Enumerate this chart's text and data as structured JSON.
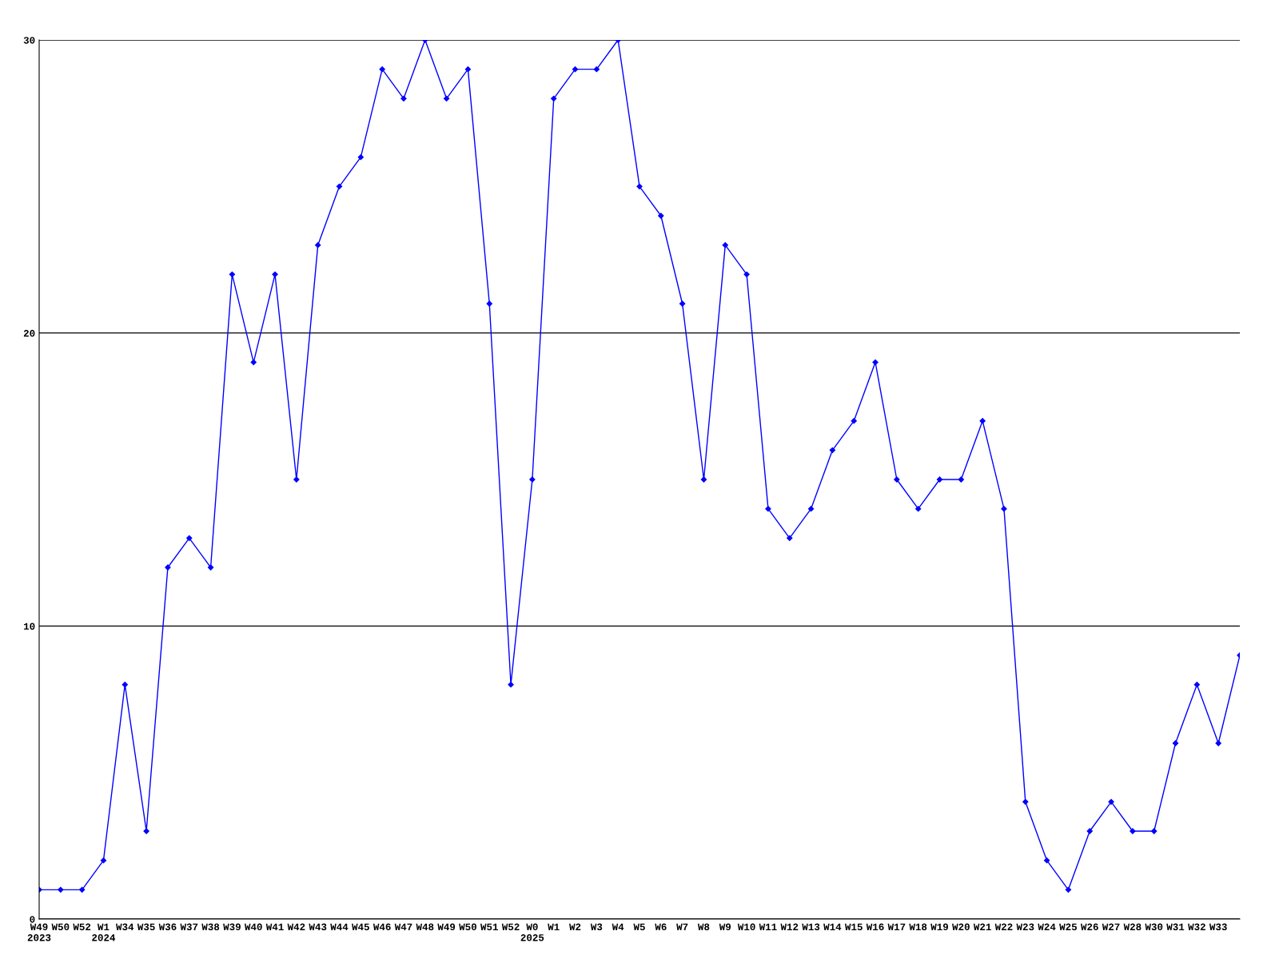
{
  "chart_data": {
    "type": "line",
    "categories": [
      "W49\n2023",
      "W50",
      "W52",
      "W1\n2024",
      "W34",
      "W35",
      "W36",
      "W37",
      "W38",
      "W39",
      "W40",
      "W41",
      "W42",
      "W43",
      "W44",
      "W45",
      "W46",
      "W47",
      "W48",
      "W49",
      "W50",
      "W51",
      "W52",
      "W0\n2025",
      "W1",
      "W2",
      "W3",
      "W4",
      "W5",
      "W6",
      "W7",
      "W8",
      "W9",
      "W10",
      "W11",
      "W12",
      "W13",
      "W14",
      "W15",
      "W16",
      "W17",
      "W18",
      "W19",
      "W20",
      "W21",
      "W22",
      "W23",
      "W24",
      "W25",
      "W26",
      "W27",
      "W28",
      "W30",
      "W31",
      "W32",
      "W33",
      null
    ],
    "series": [
      {
        "color": "#0000ff",
        "values": [
          1,
          1,
          1,
          2,
          8,
          3,
          12,
          13,
          12,
          22,
          19,
          22,
          15,
          23,
          25,
          26,
          29,
          28,
          30,
          28,
          29,
          21,
          8,
          15,
          28,
          29,
          29,
          30,
          25,
          24,
          21,
          15,
          23,
          22,
          14,
          13,
          14,
          16,
          17,
          19,
          15,
          14,
          15,
          15,
          17,
          14,
          4,
          2,
          1,
          3,
          4,
          3,
          3,
          6,
          8,
          6,
          9
        ]
      }
    ],
    "ylim": [
      0,
      30
    ],
    "yticks": [
      0,
      10,
      20,
      30
    ],
    "grid": "y",
    "marker": "diamond",
    "line_style": "solid",
    "legend": false
  }
}
